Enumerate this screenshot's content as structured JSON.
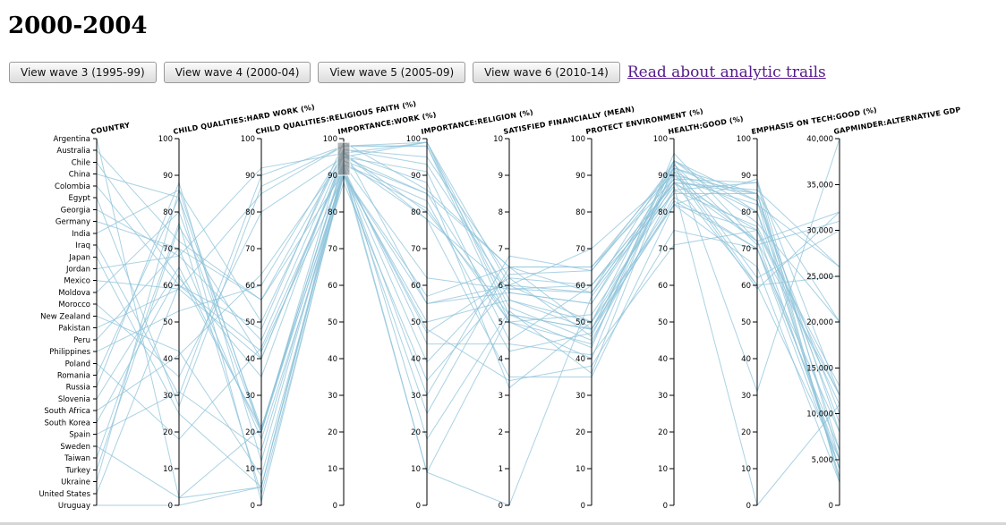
{
  "page_title": "2000-2004",
  "buttons": [
    "View wave 3 (1995-99)",
    "View wave 4 (2000-04)",
    "View wave 5 (2005-09)",
    "View wave 6 (2010-14)"
  ],
  "link_text": "Read about analytic trails",
  "colors": {
    "line": "#8ec3da",
    "brush": "#777777",
    "link": "#551a8b"
  },
  "chart_data": {
    "type": "parallel-coordinates",
    "dimensions": [
      {
        "key": "country",
        "label": "COUNTRY",
        "type": "category"
      },
      {
        "key": "hardwork",
        "label": "CHILD QUALITIES:HARD WORK (%)",
        "domain": [
          0,
          100
        ],
        "ticks": [
          0,
          10,
          20,
          30,
          40,
          50,
          60,
          70,
          80,
          90,
          100
        ]
      },
      {
        "key": "religious",
        "label": "CHILD QUALITIES:RELIGIOUS FAITH (%)",
        "domain": [
          0,
          100
        ],
        "ticks": [
          0,
          10,
          20,
          30,
          40,
          50,
          60,
          70,
          80,
          90,
          100
        ]
      },
      {
        "key": "work",
        "label": "IMPORTANCE:WORK (%)",
        "domain": [
          0,
          100
        ],
        "ticks": [
          0,
          10,
          20,
          30,
          40,
          50,
          60,
          70,
          80,
          90,
          100
        ]
      },
      {
        "key": "religion",
        "label": "IMPORTANCE:RELIGION (%)",
        "domain": [
          0,
          100
        ],
        "ticks": [
          0,
          10,
          20,
          30,
          40,
          50,
          60,
          70,
          80,
          90,
          100
        ]
      },
      {
        "key": "satisfied",
        "label": "SATISFIED FINANCIALLY (MEAN)",
        "domain": [
          0,
          10
        ],
        "ticks": [
          0,
          1,
          2,
          3,
          4,
          5,
          6,
          7,
          8,
          9,
          10
        ]
      },
      {
        "key": "environment",
        "label": "PROTECT ENVIRONMENT (%)",
        "domain": [
          0,
          100
        ],
        "ticks": [
          0,
          10,
          20,
          30,
          40,
          50,
          60,
          70,
          80,
          90,
          100
        ]
      },
      {
        "key": "health",
        "label": "HEALTH:GOOD (%)",
        "domain": [
          0,
          100
        ],
        "ticks": [
          0,
          10,
          20,
          30,
          40,
          50,
          60,
          70,
          80,
          90,
          100
        ]
      },
      {
        "key": "tech",
        "label": "EMPHASIS ON TECH:GOOD (%)",
        "domain": [
          0,
          100
        ],
        "ticks": [
          0,
          10,
          20,
          30,
          40,
          50,
          60,
          70,
          80,
          90,
          100
        ]
      },
      {
        "key": "gdp",
        "label": "GAPMINDER:ALTERNATIVE GDP",
        "domain": [
          0,
          40000
        ],
        "ticks": [
          0,
          5000,
          10000,
          15000,
          20000,
          25000,
          30000,
          35000,
          40000
        ],
        "tick_labels": [
          "0",
          "5,000",
          "10,000",
          "15,000",
          "20,000",
          "25,000",
          "30,000",
          "35,000",
          "40,000"
        ]
      }
    ],
    "brush": {
      "dimension": "work",
      "range": [
        90,
        99
      ]
    },
    "rows": [
      {
        "country": "Argentina",
        "hardwork": 2,
        "religious": 21,
        "work": 93,
        "religion": 62,
        "satisfied": 5.9,
        "environment": 58,
        "health": 88,
        "tech": 72,
        "gdp": 12000
      },
      {
        "country": "Australia",
        "hardwork": 72,
        "religious": 56,
        "work": 91,
        "religion": 39,
        "satisfied": 6.3,
        "environment": 64,
        "health": 93,
        "tech": 71,
        "gdp": 31000
      },
      {
        "country": "Chile",
        "hardwork": 62,
        "religious": 35,
        "work": 96,
        "religion": 78,
        "satisfied": 5.9,
        "environment": 60,
        "health": 88,
        "tech": 75,
        "gdp": 13000
      },
      {
        "country": "China",
        "hardwork": 84,
        "religious": 1,
        "work": 91,
        "religion": 9,
        "satisfied": 5.2,
        "environment": 48,
        "health": 82,
        "tech": 89,
        "gdp": 5000
      },
      {
        "country": "Colombia",
        "hardwork": 60,
        "religious": 48,
        "work": 99,
        "religion": 86,
        "satisfied": 6.5,
        "environment": 48,
        "health": 91,
        "tech": 80,
        "gdp": 9000
      },
      {
        "country": "Egypt",
        "hardwork": 27,
        "religious": 87,
        "work": 98,
        "religion": 99,
        "satisfied": 6.0,
        "environment": 50,
        "health": 88,
        "tech": 60,
        "gdp": 5000
      },
      {
        "country": "Georgia",
        "hardwork": 68,
        "religious": 45,
        "work": 96,
        "religion": 88,
        "satisfied": 3.2,
        "environment": 50,
        "health": 82,
        "tech": 75,
        "gdp": 4000
      },
      {
        "country": "Germany",
        "hardwork": 70,
        "religious": 18,
        "work": 88,
        "religion": 34,
        "satisfied": 6.0,
        "environment": 70,
        "health": 90,
        "tech": 72,
        "gdp": 32000
      },
      {
        "country": "India",
        "hardwork": 86,
        "religious": 50,
        "work": 97,
        "religion": 93,
        "satisfied": 5.8,
        "environment": 55,
        "health": 92,
        "tech": 85,
        "gdp": 3000
      },
      {
        "country": "Iraq",
        "hardwork": 30,
        "religious": 90,
        "work": 98,
        "religion": 98,
        "satisfied": 5.0,
        "environment": 40,
        "health": 94,
        "tech": 80,
        "gdp": 4000
      },
      {
        "country": "Japan",
        "hardwork": 25,
        "religious": 5,
        "work": 93,
        "religion": 18,
        "satisfied": 5.3,
        "environment": 36,
        "health": 93,
        "tech": 62,
        "gdp": 30000
      },
      {
        "country": "Jordan",
        "hardwork": 68,
        "religious": 92,
        "work": 96,
        "religion": 99,
        "satisfied": 5.2,
        "environment": 43,
        "health": 96,
        "tech": 72,
        "gdp": 5000
      },
      {
        "country": "Mexico",
        "hardwork": 59,
        "religious": 40,
        "work": 94,
        "religion": 85,
        "satisfied": 6.5,
        "environment": 65,
        "health": 89,
        "tech": 88,
        "gdp": 12000
      },
      {
        "country": "Moldova",
        "hardwork": 80,
        "religious": 20,
        "work": 94,
        "religion": 78,
        "satisfied": 3.5,
        "environment": 35,
        "health": 82,
        "tech": 65,
        "gdp": 2500
      },
      {
        "country": "Morocco",
        "hardwork": 35,
        "religious": 80,
        "work": 95,
        "religion": 99,
        "satisfied": 5.6,
        "environment": 48,
        "health": 84,
        "tech": 70,
        "gdp": 4000
      },
      {
        "country": "New Zealand",
        "hardwork": 42,
        "religious": 8,
        "work": 90,
        "religion": 25,
        "satisfied": 6.5,
        "environment": 65,
        "health": 92,
        "tech": 60,
        "gdp": 25000
      },
      {
        "country": "Pakistan",
        "hardwork": 59,
        "religious": 85,
        "work": 98,
        "religion": 98,
        "satisfied": 5.4,
        "environment": 45,
        "health": 86,
        "tech": 88,
        "gdp": 2500
      },
      {
        "country": "Peru",
        "hardwork": 70,
        "religious": 56,
        "work": 96,
        "religion": 80,
        "satisfied": 5.2,
        "environment": 48,
        "health": 90,
        "tech": 85,
        "gdp": 6000
      },
      {
        "country": "Philippines",
        "hardwork": 53,
        "religious": 60,
        "work": 97,
        "religion": 95,
        "satisfied": 6.2,
        "environment": 46,
        "health": 94,
        "tech": 83,
        "gdp": 3000
      },
      {
        "country": "Poland",
        "hardwork": 18,
        "religious": 43,
        "work": 93,
        "religion": 81,
        "satisfied": 5.0,
        "environment": 52,
        "health": 86,
        "tech": 76,
        "gdp": 12000
      },
      {
        "country": "Romania",
        "hardwork": 84,
        "religious": 21,
        "work": 93,
        "religion": 83,
        "satisfied": 4.2,
        "environment": 47,
        "health": 83,
        "tech": 70,
        "gdp": 8000
      },
      {
        "country": "Russia",
        "hardwork": 88,
        "religious": 12,
        "work": 92,
        "religion": 44,
        "satisfied": 4.4,
        "environment": 41,
        "health": 71,
        "tech": 75,
        "gdp": 11000
      },
      {
        "country": "Slovenia",
        "hardwork": 65,
        "religious": 20,
        "work": 97,
        "religion": 55,
        "satisfied": 6.0,
        "environment": 58,
        "health": 88,
        "tech": 85,
        "gdp": 20000
      },
      {
        "country": "South Africa",
        "hardwork": 41,
        "religious": 63,
        "work": 95,
        "religion": 85,
        "satisfied": 5.0,
        "environment": 44,
        "health": 92,
        "tech": 83,
        "gdp": 10000
      },
      {
        "country": "South Korea",
        "hardwork": 63,
        "religious": 21,
        "work": 90,
        "religion": 50,
        "satisfied": 5.6,
        "environment": 50,
        "health": 94,
        "tech": 77,
        "gdp": 20000
      },
      {
        "country": "Spain",
        "hardwork": 31,
        "religious": 15,
        "work": 91,
        "religion": 47,
        "satisfied": 6.2,
        "environment": 60,
        "health": 88,
        "tech": 86,
        "gdp": 26000
      },
      {
        "country": "Sweden",
        "hardwork": 2,
        "religious": 5,
        "work": 91,
        "religion": 30,
        "satisfied": 6.8,
        "environment": 64,
        "health": 91,
        "tech": 59,
        "gdp": 32000
      },
      {
        "country": "Taiwan",
        "hardwork": 77,
        "religious": 3,
        "work": 90,
        "religion": 55,
        "satisfied": 5.8,
        "environment": 55,
        "health": 89,
        "tech": 82,
        "gdp": 26000
      },
      {
        "country": "Turkey",
        "hardwork": 76,
        "religious": 40,
        "work": 95,
        "religion": 91,
        "satisfied": 4.5,
        "environment": 60,
        "health": 85,
        "tech": 85,
        "gdp": 8000
      },
      {
        "country": "Ukraine",
        "hardwork": 86,
        "religious": 20,
        "work": 91,
        "religion": 48,
        "satisfied": 3.4,
        "environment": 38,
        "health": 75,
        "tech": 70,
        "gdp": 6000
      },
      {
        "country": "United States",
        "hardwork": 60,
        "religious": 42,
        "work": 90,
        "religion": 57,
        "satisfied": 6.5,
        "environment": 58,
        "health": 94,
        "tech": 31,
        "gdp": 40000
      },
      {
        "country": "Uruguay",
        "hardwork": 0,
        "religious": 5,
        "work": 92,
        "religion": 9,
        "satisfied": 0,
        "environment": 57,
        "health": 87,
        "tech": 0,
        "gdp": 11000
      }
    ]
  }
}
